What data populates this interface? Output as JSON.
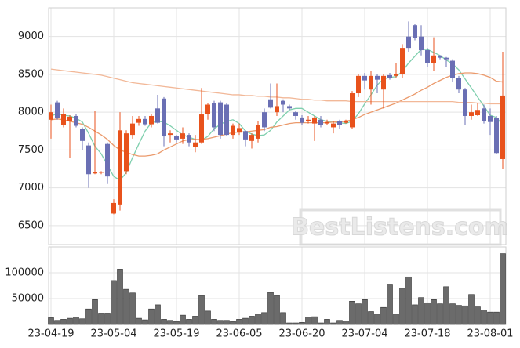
{
  "chart_data": [
    {
      "type": "candlestick",
      "watermark": "BestListens.com",
      "up_color": "#e8521c",
      "down_color": "#6a6fb4",
      "open": [
        7900,
        8130,
        7830,
        7880,
        7950,
        7780,
        7560,
        7190,
        7200,
        7580,
        6660,
        6780,
        7220,
        7700,
        7860,
        7910,
        7840,
        8050,
        8180,
        7700,
        7680,
        7650,
        7700,
        7540,
        7600,
        7980,
        8120,
        8130,
        8100,
        7700,
        7730,
        7750,
        7620,
        7650,
        8000,
        8170,
        8000,
        8150,
        8080,
        8000,
        7930,
        7880,
        7850,
        7900,
        7850,
        7800,
        7880,
        7860,
        7800,
        8250,
        8480,
        8300,
        8480,
        8300,
        8490,
        8480,
        8500,
        9000,
        9150,
        9000,
        8820,
        8650,
        8750,
        8720,
        8680,
        8450,
        8300,
        7950,
        7960,
        8050,
        7950,
        7920,
        7380
      ],
      "high": [
        8100,
        8150,
        8050,
        7960,
        7980,
        7800,
        7600,
        8020,
        7220,
        7600,
        6850,
        8000,
        7760,
        7950,
        7950,
        7950,
        7980,
        8230,
        8200,
        7760,
        7700,
        7800,
        7720,
        7700,
        8320,
        8120,
        8150,
        8150,
        8120,
        7850,
        7850,
        7760,
        7720,
        7880,
        8050,
        8380,
        8380,
        8170,
        8100,
        8020,
        7960,
        7950,
        7950,
        7950,
        7900,
        7880,
        7900,
        7900,
        8280,
        8500,
        8520,
        8550,
        8500,
        8500,
        8520,
        8650,
        8900,
        9200,
        9170,
        9150,
        8850,
        8990,
        8750,
        8730,
        8700,
        8480,
        8320,
        8100,
        8120,
        8100,
        8050,
        7950,
        8800
      ],
      "low": [
        7650,
        7900,
        7800,
        7400,
        7800,
        7500,
        7000,
        7180,
        7180,
        7050,
        6650,
        6700,
        7180,
        7650,
        7820,
        7820,
        7800,
        7850,
        7550,
        7600,
        7600,
        7580,
        7550,
        7470,
        7580,
        7900,
        7750,
        7650,
        7680,
        7650,
        7700,
        7550,
        7520,
        7600,
        7750,
        8050,
        7950,
        8000,
        8030,
        7900,
        7830,
        7850,
        7620,
        7800,
        7830,
        7720,
        7780,
        7850,
        7780,
        8200,
        8300,
        8100,
        8250,
        8050,
        8430,
        8450,
        8450,
        8800,
        8950,
        8750,
        8600,
        8550,
        8700,
        8600,
        8400,
        8250,
        7830,
        7900,
        7950,
        7850,
        7700,
        7450,
        7250
      ],
      "close": [
        8000,
        7920,
        7980,
        7940,
        7820,
        7620,
        7180,
        7210,
        7210,
        7150,
        6800,
        7760,
        7720,
        7850,
        7910,
        7840,
        7950,
        7860,
        7680,
        7720,
        7640,
        7720,
        7600,
        7600,
        7970,
        8100,
        7800,
        7700,
        7700,
        7820,
        7790,
        7640,
        7700,
        7830,
        7800,
        8060,
        8080,
        8100,
        8050,
        7950,
        7860,
        7900,
        7930,
        7830,
        7870,
        7850,
        7830,
        7890,
        8250,
        8480,
        8420,
        8480,
        8430,
        8480,
        8450,
        8500,
        8850,
        8850,
        8980,
        8820,
        8650,
        8750,
        8720,
        8700,
        8450,
        8300,
        7950,
        8000,
        8030,
        7880,
        7870,
        7460,
        8220
      ],
      "series": [
        {
          "color": "#7fcfae",
          "values": [
            7950,
            7980,
            7960,
            7950,
            7920,
            7870,
            7720,
            7550,
            7450,
            7300,
            7150,
            7100,
            7200,
            7400,
            7580,
            7750,
            7860,
            7880,
            7870,
            7820,
            7760,
            7700,
            7670,
            7640,
            7630,
            7680,
            7780,
            7840,
            7880,
            7900,
            7850,
            7750,
            7710,
            7690,
            7700,
            7760,
            7870,
            7950,
            8030,
            8050,
            8050,
            8000,
            7950,
            7900,
            7880,
            7870,
            7860,
            7850,
            7880,
            7980,
            8110,
            8230,
            8360,
            8440,
            8460,
            8470,
            8540,
            8650,
            8740,
            8830,
            8830,
            8790,
            8750,
            8690,
            8640,
            8560,
            8440,
            8320,
            8200,
            8080,
            7960,
            7930,
            7830
          ]
        },
        {
          "color": "#eb9a6c",
          "values": [
            7900,
            7910,
            7900,
            7880,
            7860,
            7840,
            7800,
            7750,
            7700,
            7640,
            7560,
            7500,
            7470,
            7440,
            7420,
            7420,
            7430,
            7450,
            7500,
            7540,
            7580,
            7620,
            7640,
            7640,
            7640,
            7650,
            7670,
            7690,
            7710,
            7730,
            7740,
            7740,
            7750,
            7760,
            7770,
            7800,
            7810,
            7830,
            7850,
            7860,
            7860,
            7860,
            7860,
            7860,
            7860,
            7870,
            7870,
            7880,
            7900,
            7930,
            7970,
            8000,
            8030,
            8060,
            8090,
            8120,
            8160,
            8200,
            8240,
            8290,
            8330,
            8380,
            8420,
            8460,
            8490,
            8510,
            8520,
            8520,
            8510,
            8490,
            8460,
            8410,
            8400
          ]
        },
        {
          "color": "#f2b898",
          "values": [
            8570,
            8560,
            8550,
            8540,
            8530,
            8520,
            8510,
            8500,
            8490,
            8470,
            8450,
            8430,
            8410,
            8390,
            8380,
            8370,
            8360,
            8350,
            8340,
            8330,
            8320,
            8310,
            8300,
            8290,
            8280,
            8270,
            8260,
            8250,
            8240,
            8230,
            8230,
            8220,
            8220,
            8210,
            8210,
            8200,
            8200,
            8190,
            8190,
            8180,
            8170,
            8170,
            8160,
            8160,
            8150,
            8150,
            8150,
            8150,
            8140,
            8140,
            8140,
            8140,
            8140,
            8140,
            8140,
            8140,
            8140,
            8140,
            8140,
            8140,
            8140,
            8140,
            8140,
            8140,
            8140,
            8130,
            8130,
            8130,
            8120,
            8120,
            8110,
            8110,
            8110
          ]
        }
      ],
      "ylim": [
        6250,
        9380
      ],
      "yticks": [
        6500,
        7000,
        7500,
        8000,
        8500,
        9000
      ],
      "grid": true
    },
    {
      "type": "bar",
      "color": "#6b6b6b",
      "categories": [
        "23-04-19",
        null,
        null,
        null,
        null,
        null,
        null,
        null,
        null,
        null,
        "23-05-04",
        null,
        null,
        null,
        null,
        null,
        null,
        null,
        null,
        null,
        "23-05-19",
        null,
        null,
        null,
        null,
        null,
        null,
        null,
        null,
        null,
        "23-06-05",
        null,
        null,
        null,
        null,
        null,
        null,
        null,
        null,
        null,
        "23-06-20",
        null,
        null,
        null,
        null,
        null,
        null,
        null,
        null,
        null,
        "23-07-04",
        null,
        null,
        null,
        null,
        null,
        null,
        null,
        null,
        null,
        "23-07-18",
        null,
        null,
        null,
        null,
        null,
        null,
        null,
        null,
        null,
        "23-08-01",
        null,
        null
      ],
      "values": [
        13000,
        8000,
        10000,
        12000,
        14000,
        11000,
        30000,
        48000,
        22000,
        22000,
        85000,
        107000,
        68000,
        61000,
        12000,
        9000,
        30000,
        38000,
        10000,
        8000,
        6000,
        18000,
        10000,
        16000,
        56000,
        26000,
        10000,
        8000,
        8000,
        6000,
        10000,
        12000,
        16000,
        20000,
        23000,
        62000,
        56000,
        23000,
        3000,
        3000,
        4000,
        14000,
        15000,
        3000,
        10000,
        3000,
        8000,
        7000,
        45000,
        40000,
        48000,
        25000,
        20000,
        33000,
        78000,
        20000,
        70000,
        92000,
        38000,
        52000,
        42000,
        48000,
        40000,
        73000,
        40000,
        37000,
        36000,
        58000,
        34000,
        28000,
        24000,
        24000,
        137000
      ],
      "ylim": [
        0,
        150000
      ],
      "yticks": [
        50000,
        100000
      ],
      "grid": true
    }
  ]
}
